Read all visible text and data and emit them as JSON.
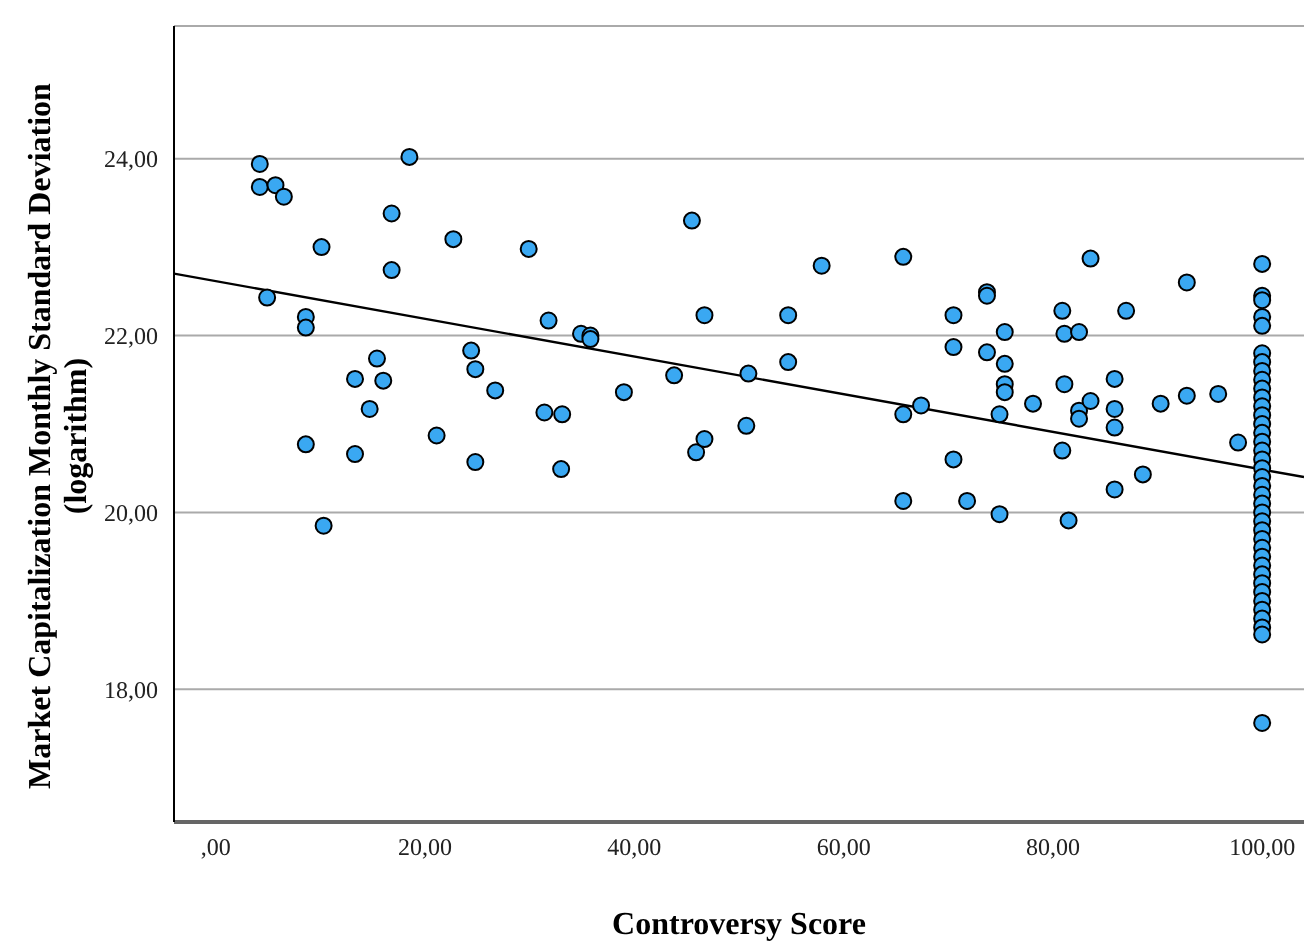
{
  "chart_data": {
    "type": "scatter",
    "xlabel": "Controversy Score",
    "ylabel": "Market Capitalization Monthly Standard Deviation (logarithm)",
    "xlim": [
      -4,
      104
    ],
    "xticks": [
      {
        "value": 0,
        "label": ",00"
      },
      {
        "value": 20,
        "label": "20,00"
      },
      {
        "value": 40,
        "label": "40,00"
      },
      {
        "value": 60,
        "label": "60,00"
      },
      {
        "value": 80,
        "label": "80,00"
      },
      {
        "value": 100,
        "label": "100,00"
      }
    ],
    "ylim": [
      16.5,
      25.5
    ],
    "yticks": [
      {
        "value": 18,
        "label": "18,00"
      },
      {
        "value": 20,
        "label": "20,00"
      },
      {
        "value": 22,
        "label": "22,00"
      },
      {
        "value": 24,
        "label": "24,00"
      }
    ],
    "grid": "y",
    "series": [
      {
        "color": "#3aa8f2",
        "marker": "circle",
        "x": [
          4.2,
          4.2,
          5.7,
          6.5,
          10.1,
          4.9,
          8.6,
          8.6,
          8.6,
          10.3,
          18.5,
          16.8,
          16.8,
          22.7,
          29.9,
          31.8,
          15.4,
          13.3,
          16.0,
          14.7,
          13.3,
          24.4,
          24.8,
          26.7,
          21.1,
          24.8,
          31.4,
          33.1,
          33.0,
          34.9,
          35.8,
          35.8,
          39.0,
          43.8,
          45.5,
          46.7,
          45.9,
          46.7,
          50.9,
          50.7,
          54.7,
          54.7,
          57.9,
          65.7,
          65.7,
          67.4,
          65.7,
          70.5,
          70.5,
          73.7,
          73.7,
          73.7,
          75.4,
          75.4,
          75.4,
          75.4,
          74.9,
          70.5,
          71.8,
          74.9,
          78.1,
          80.9,
          81.1,
          82.5,
          81.1,
          82.5,
          82.5,
          83.6,
          83.6,
          87.0,
          85.9,
          85.9,
          85.9,
          80.9,
          81.5,
          85.9,
          88.6,
          90.3,
          92.8,
          92.8,
          95.8,
          97.7,
          100,
          100,
          100,
          100,
          100,
          100,
          100,
          100,
          100,
          100,
          100,
          100,
          100,
          100,
          100,
          100,
          100,
          100,
          100,
          100,
          100,
          100,
          100,
          100,
          100,
          100,
          100,
          100,
          100,
          100,
          100,
          100,
          100,
          100,
          100,
          100,
          100,
          100,
          100
        ],
        "values": [
          23.94,
          23.68,
          23.7,
          23.57,
          23.0,
          22.43,
          22.21,
          22.09,
          20.77,
          19.85,
          24.02,
          23.38,
          22.74,
          23.09,
          22.98,
          22.17,
          21.74,
          21.51,
          21.49,
          21.17,
          20.66,
          21.83,
          21.62,
          21.38,
          20.87,
          20.57,
          21.13,
          21.11,
          20.49,
          22.02,
          22.0,
          21.96,
          21.36,
          21.55,
          23.3,
          22.23,
          20.68,
          20.83,
          21.57,
          20.98,
          22.23,
          21.7,
          22.79,
          22.89,
          21.11,
          21.21,
          20.13,
          22.23,
          21.87,
          22.49,
          22.45,
          21.81,
          22.04,
          21.68,
          21.45,
          21.36,
          21.11,
          20.6,
          20.13,
          19.98,
          21.23,
          22.28,
          22.02,
          22.04,
          21.45,
          21.15,
          21.06,
          21.26,
          22.87,
          22.28,
          21.51,
          21.17,
          20.96,
          20.7,
          19.91,
          20.26,
          20.43,
          21.23,
          22.6,
          21.32,
          21.34,
          20.79,
          22.81,
          22.45,
          22.4,
          22.21,
          22.11,
          21.8,
          21.7,
          21.6,
          21.5,
          21.4,
          21.3,
          21.2,
          21.1,
          21.0,
          20.9,
          20.8,
          20.7,
          20.6,
          20.5,
          20.4,
          20.3,
          20.2,
          20.1,
          20.0,
          19.9,
          19.8,
          19.7,
          19.6,
          19.5,
          19.4,
          19.3,
          19.2,
          19.1,
          19.0,
          18.9,
          18.8,
          18.7,
          18.62,
          17.62
        ]
      },
      {
        "type": "line",
        "marker": "none",
        "color": "#000000",
        "x": [
          -4,
          104
        ],
        "values": [
          22.7,
          20.4
        ]
      }
    ]
  }
}
